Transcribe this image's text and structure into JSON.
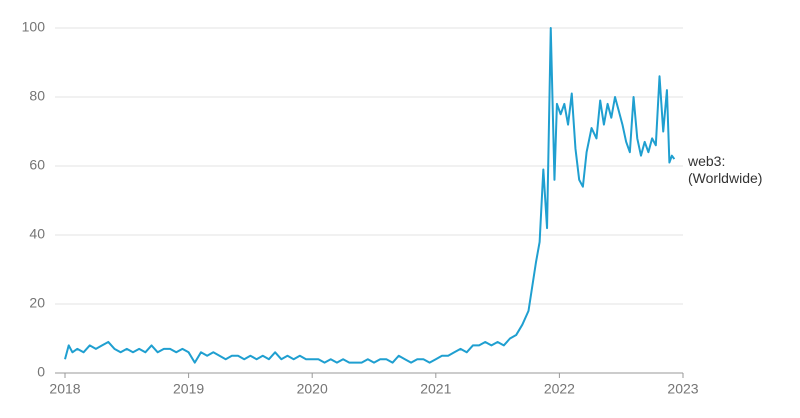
{
  "chart_data": {
    "type": "line",
    "x": [
      2018.0,
      2018.03,
      2018.06,
      2018.1,
      2018.15,
      2018.2,
      2018.25,
      2018.3,
      2018.35,
      2018.4,
      2018.45,
      2018.5,
      2018.55,
      2018.6,
      2018.65,
      2018.7,
      2018.75,
      2018.8,
      2018.85,
      2018.9,
      2018.95,
      2019.0,
      2019.05,
      2019.1,
      2019.15,
      2019.2,
      2019.25,
      2019.3,
      2019.35,
      2019.4,
      2019.45,
      2019.5,
      2019.55,
      2019.6,
      2019.65,
      2019.7,
      2019.75,
      2019.8,
      2019.85,
      2019.9,
      2019.95,
      2020.0,
      2020.05,
      2020.1,
      2020.15,
      2020.2,
      2020.25,
      2020.3,
      2020.35,
      2020.4,
      2020.45,
      2020.5,
      2020.55,
      2020.6,
      2020.65,
      2020.7,
      2020.75,
      2020.8,
      2020.85,
      2020.9,
      2020.95,
      2021.0,
      2021.05,
      2021.1,
      2021.15,
      2021.2,
      2021.25,
      2021.3,
      2021.35,
      2021.4,
      2021.45,
      2021.5,
      2021.55,
      2021.6,
      2021.65,
      2021.7,
      2021.75,
      2021.78,
      2021.81,
      2021.84,
      2021.87,
      2021.9,
      2021.93,
      2021.96,
      2021.98,
      2022.01,
      2022.04,
      2022.07,
      2022.1,
      2022.13,
      2022.16,
      2022.19,
      2022.22,
      2022.26,
      2022.3,
      2022.33,
      2022.36,
      2022.39,
      2022.42,
      2022.45,
      2022.48,
      2022.51,
      2022.54,
      2022.57,
      2022.6,
      2022.63,
      2022.66,
      2022.69,
      2022.72,
      2022.75,
      2022.78,
      2022.81,
      2022.84,
      2022.87,
      2022.89,
      2022.91,
      2022.93
    ],
    "series": [
      {
        "name": "web3: (Worldwide)",
        "color": "#1f9fd0",
        "values": [
          4,
          8,
          6,
          7,
          6,
          8,
          7,
          8,
          9,
          7,
          6,
          7,
          6,
          7,
          6,
          8,
          6,
          7,
          7,
          6,
          7,
          6,
          3,
          6,
          5,
          6,
          5,
          4,
          5,
          5,
          4,
          5,
          4,
          5,
          4,
          6,
          4,
          5,
          4,
          5,
          4,
          4,
          4,
          3,
          4,
          3,
          4,
          3,
          3,
          3,
          4,
          3,
          4,
          4,
          3,
          5,
          4,
          3,
          4,
          4,
          3,
          4,
          5,
          5,
          6,
          7,
          6,
          8,
          8,
          9,
          8,
          9,
          8,
          10,
          11,
          14,
          18,
          25,
          32,
          38,
          59,
          42,
          100,
          56,
          78,
          75,
          78,
          72,
          81,
          65,
          56,
          54,
          64,
          71,
          68,
          79,
          72,
          78,
          74,
          80,
          76,
          72,
          67,
          64,
          80,
          68,
          63,
          67,
          64,
          68,
          66,
          86,
          70,
          82,
          61,
          63,
          62
        ]
      }
    ],
    "xlim": [
      2018,
      2023
    ],
    "xticks": [
      2018,
      2019,
      2020,
      2021,
      2022,
      2023
    ],
    "ylim": [
      0,
      100
    ],
    "yticks": [
      0,
      20,
      40,
      60,
      80,
      100
    ],
    "grid": true
  }
}
